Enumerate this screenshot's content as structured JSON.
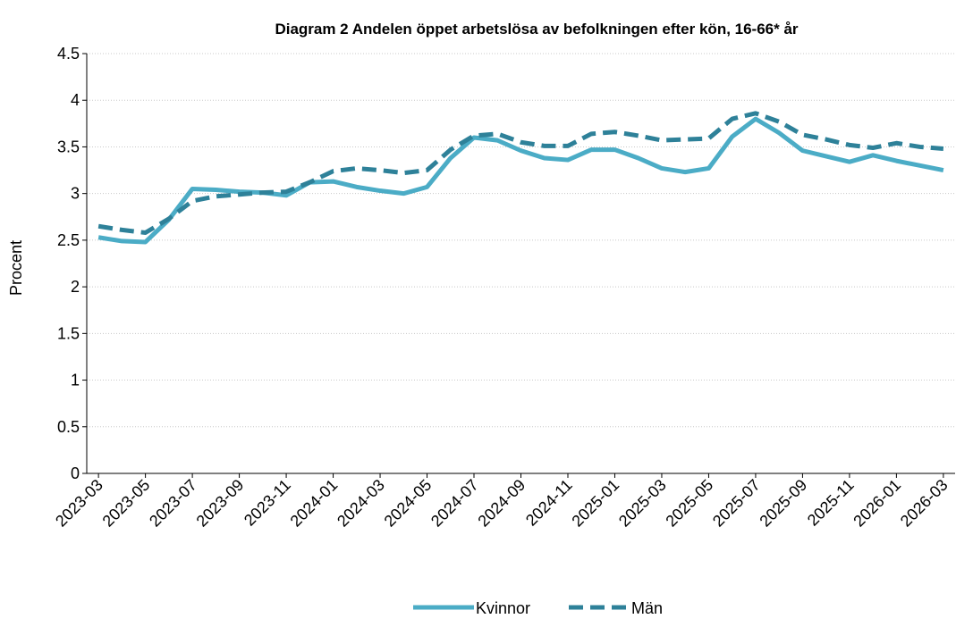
{
  "chart_data": {
    "type": "line",
    "title": "Diagram 2 Andelen öppet arbetslösa av befolkningen efter kön, 16-66* år",
    "y_label": "Procent",
    "categories": [
      "2023-03",
      null,
      "2023-05",
      null,
      "2023-07",
      null,
      "2023-09",
      null,
      "2023-11",
      null,
      "2024-01",
      null,
      "2024-03",
      null,
      "2024-05",
      null,
      "2024-07",
      null,
      "2024-09",
      null,
      "2024-11",
      null,
      "2025-01",
      null,
      "2025-03",
      null,
      "2025-05",
      null,
      "2025-07",
      null,
      "2025-09",
      null,
      "2025-11",
      null,
      "2026-01",
      null,
      "2026-03"
    ],
    "series": [
      {
        "name": "Kvinnor",
        "color": "#4bacc6",
        "dash": false,
        "values": [
          2.53,
          2.49,
          2.48,
          2.72,
          3.05,
          3.04,
          3.02,
          3.01,
          2.98,
          3.12,
          3.13,
          3.07,
          3.03,
          3.0,
          3.07,
          3.38,
          3.6,
          3.57,
          3.46,
          3.38,
          3.36,
          3.47,
          3.47,
          3.38,
          3.27,
          3.23,
          3.27,
          3.61,
          3.8,
          3.65,
          3.46,
          3.4,
          3.34,
          3.41,
          3.35,
          3.3,
          3.25
        ]
      },
      {
        "name": "Män",
        "color": "#2e8199",
        "dash": true,
        "values": [
          2.65,
          2.61,
          2.58,
          2.73,
          2.92,
          2.97,
          2.99,
          3.01,
          3.02,
          3.12,
          3.24,
          3.27,
          3.25,
          3.22,
          3.25,
          3.47,
          3.62,
          3.64,
          3.55,
          3.51,
          3.51,
          3.64,
          3.66,
          3.62,
          3.57,
          3.58,
          3.59,
          3.8,
          3.86,
          3.77,
          3.63,
          3.58,
          3.52,
          3.49,
          3.54,
          3.5,
          3.48
        ]
      }
    ],
    "ylim": [
      0,
      4.5
    ],
    "yticks": [
      0,
      0.5,
      1,
      1.5,
      2,
      2.5,
      3,
      3.5,
      4,
      4.5
    ],
    "grid": true,
    "legend": "bottom"
  }
}
